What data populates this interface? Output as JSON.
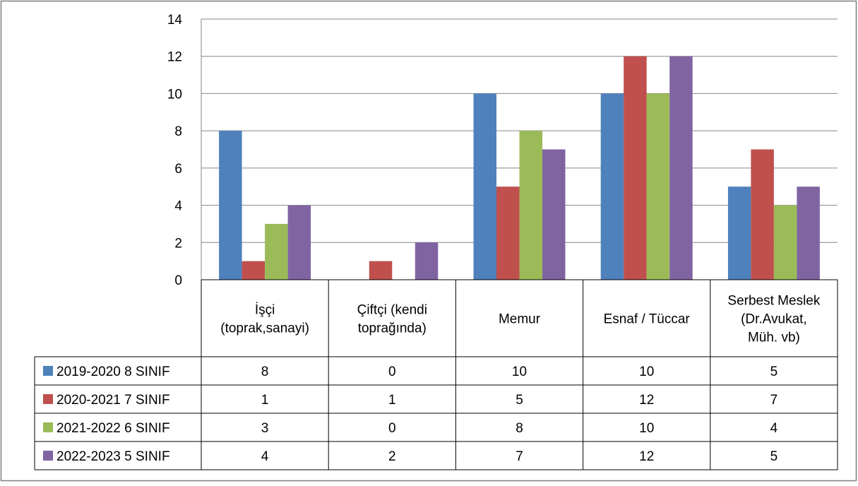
{
  "chart_data": {
    "type": "bar",
    "categories": [
      [
        "İşçi",
        "(toprak,sanayi)"
      ],
      [
        "Çiftçi (kendi",
        "toprağında)"
      ],
      [
        "Memur"
      ],
      [
        "Esnaf / Tüccar"
      ],
      [
        "Serbest Meslek",
        "(Dr.Avukat,",
        "Müh. vb)"
      ]
    ],
    "series": [
      {
        "name": "2019-2020 8 SINIF",
        "color": "#4F81BD",
        "values": [
          8,
          0,
          10,
          10,
          5
        ]
      },
      {
        "name": "2020-2021 7 SINIF",
        "color": "#C0504D",
        "values": [
          1,
          1,
          5,
          12,
          7
        ]
      },
      {
        "name": "2021-2022 6 SINIF",
        "color": "#9BBB59",
        "values": [
          3,
          0,
          8,
          10,
          4
        ]
      },
      {
        "name": "2022-2023 5 SINIF",
        "color": "#8064A2",
        "values": [
          4,
          2,
          7,
          12,
          5
        ]
      }
    ],
    "ylim": [
      0,
      14
    ],
    "yticks": [
      0,
      2,
      4,
      6,
      8,
      10,
      12,
      14
    ],
    "grid": true,
    "legend": "data-table-left",
    "data_table": true
  }
}
